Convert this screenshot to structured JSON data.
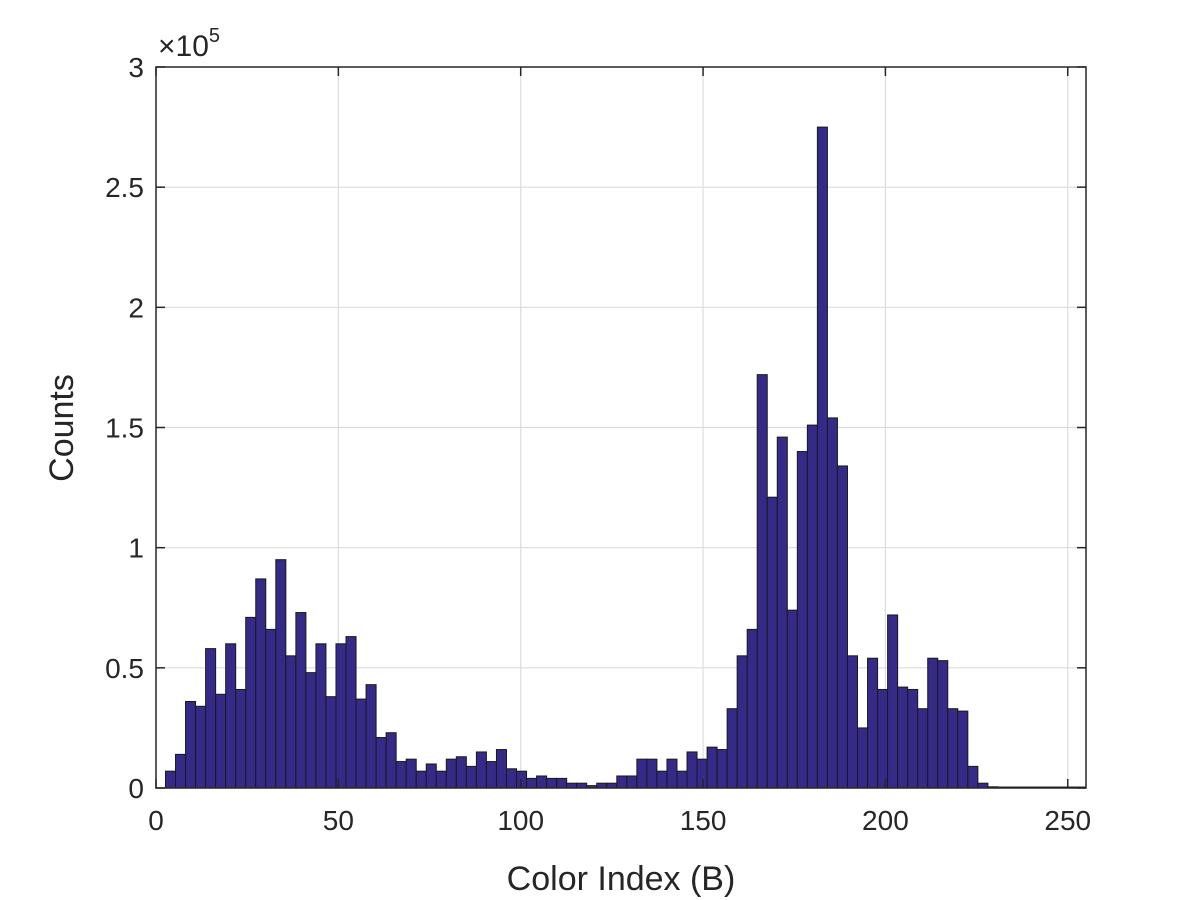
{
  "chart_data": {
    "type": "bar",
    "title": "",
    "xlabel": "Color Index (B)",
    "ylabel": "Counts",
    "exponent_prefix": "×10",
    "exponent_power": "5",
    "xlim": [
      0,
      255
    ],
    "ylim": [
      0,
      3
    ],
    "xticks": [
      0,
      50,
      100,
      150,
      200,
      250
    ],
    "xtick_labels": [
      "0",
      "50",
      "100",
      "150",
      "200",
      "250"
    ],
    "yticks": [
      0,
      0.5,
      1,
      1.5,
      2,
      2.5,
      3
    ],
    "ytick_labels": [
      "0",
      "0.5",
      "1",
      "1.5",
      "2",
      "2.5",
      "3"
    ],
    "grid": true,
    "bar_color": "#352a87",
    "bin_width": 2.75,
    "bin_start": 2.6,
    "values": [
      0.07,
      0.14,
      0.36,
      0.34,
      0.58,
      0.39,
      0.6,
      0.41,
      0.71,
      0.87,
      0.66,
      0.95,
      0.55,
      0.73,
      0.48,
      0.6,
      0.38,
      0.6,
      0.63,
      0.37,
      0.43,
      0.21,
      0.23,
      0.11,
      0.12,
      0.07,
      0.1,
      0.07,
      0.12,
      0.13,
      0.09,
      0.15,
      0.11,
      0.16,
      0.08,
      0.07,
      0.04,
      0.05,
      0.04,
      0.04,
      0.02,
      0.02,
      0.01,
      0.02,
      0.02,
      0.05,
      0.05,
      0.12,
      0.12,
      0.07,
      0.12,
      0.07,
      0.15,
      0.12,
      0.17,
      0.16,
      0.33,
      0.55,
      0.66,
      1.72,
      1.21,
      1.46,
      0.74,
      1.4,
      1.51,
      2.75,
      1.54,
      1.34,
      0.55,
      0.25,
      0.54,
      0.41,
      0.72,
      0.42,
      0.41,
      0.33,
      0.54,
      0.53,
      0.33,
      0.32,
      0.09,
      0.02,
      0.005,
      0.004,
      0.004,
      0.004,
      0.004,
      0.004,
      0.004,
      0.004,
      0.004,
      0.004,
      0.004,
      0.004,
      0.004,
      0.004,
      0.004,
      0.004,
      0.004,
      0.004,
      0.004,
      0.004,
      0.004,
      0.004,
      0.004,
      0.004,
      0.004,
      0.004,
      0.004,
      0.004,
      0.004,
      0.004,
      0.004,
      0.004,
      0.004,
      0.004,
      0.004,
      0.004,
      0.004,
      0.004,
      0.004,
      0.004,
      0.004,
      0.004,
      0.004,
      0.004,
      0.004,
      0.004,
      0.05
    ]
  }
}
